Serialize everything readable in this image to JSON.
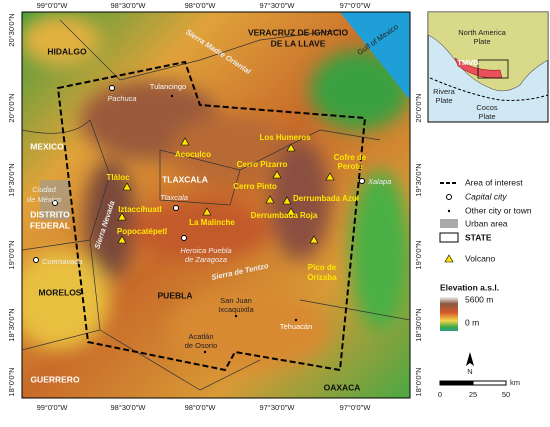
{
  "coordinates": {
    "longitude": [
      "99°0'0\"W",
      "98°30'0\"W",
      "98°0'0\"W",
      "97°30'0\"W",
      "97°0'0\"W"
    ],
    "latitude": [
      "20°30'0\"N",
      "20°0'0\"N",
      "19°30'0\"N",
      "19°0'0\"N",
      "18°30'0\"N",
      "18°0'0\"N"
    ]
  },
  "states": {
    "hidalgo": "HIDALGO",
    "veracruz": [
      "VERACRUZ DE IGNACIO",
      "DE LA LLAVE"
    ],
    "mexico": "MEXICO",
    "df": [
      "DISTRITO",
      "FEDERAL"
    ],
    "tlaxcala": "TLAXCALA",
    "puebla": "PUEBLA",
    "morelos": "MORELOS",
    "guerrero": "GUERRERO",
    "oaxaca": "OAXACA"
  },
  "features": {
    "gulf": "Gulf of Mexico",
    "smo": "Sierra Madre Oriental",
    "nevada": "Sierra Nevada",
    "tentzo": "Sierra de Tentzo"
  },
  "cities": {
    "pachuca": "Pachuca",
    "tulancingo": "Tulancingo",
    "cdmx": [
      "Ciudad",
      "de México"
    ],
    "cuernavaca": "Cuernavaca",
    "tlaxcala": "Tlaxcala",
    "puebla": [
      "Heroica Puebla",
      "de Zaragoza"
    ],
    "sanjuan": [
      "San Juan",
      "Ixcaquixtla"
    ],
    "tehuacan": "Tehuacán",
    "acatlan": [
      "Acatlán",
      "de Osorio"
    ],
    "xalapa": "Xalapa"
  },
  "volcanoes": {
    "acoculco": "Acoculco",
    "humeros": "Los Humeros",
    "pizarro": "Cerro Pizarro",
    "perote": [
      "Cofre de",
      "Perote"
    ],
    "tlaloc": "Tláloc",
    "pinto": "Cerro Pinto",
    "azul": "Derrumbada Azul",
    "roja": "Derrumbada Roja",
    "izta": "Iztaccíhuatl",
    "malinche": "La Malinche",
    "popo": "Popocatépetl",
    "orizaba": [
      "Pico de",
      "Orizaba"
    ]
  },
  "inset": {
    "na": [
      "North America",
      "Plate"
    ],
    "tmvb": "TMVB",
    "rivera": [
      "Rivera",
      "Plate"
    ],
    "cocos": [
      "Cocos",
      "Plate"
    ]
  },
  "legend": {
    "area": "Area of interest",
    "capital": "Capital city",
    "other": "Other city or town",
    "urban": "Urban area",
    "state": "STATE",
    "volcano": "Volcano",
    "elevation": "Elevation a.s.l.",
    "max": "5600 m",
    "min": "0 m"
  },
  "scale": {
    "labels": [
      "0",
      "25",
      "50"
    ],
    "unit": "km"
  },
  "north": "N"
}
